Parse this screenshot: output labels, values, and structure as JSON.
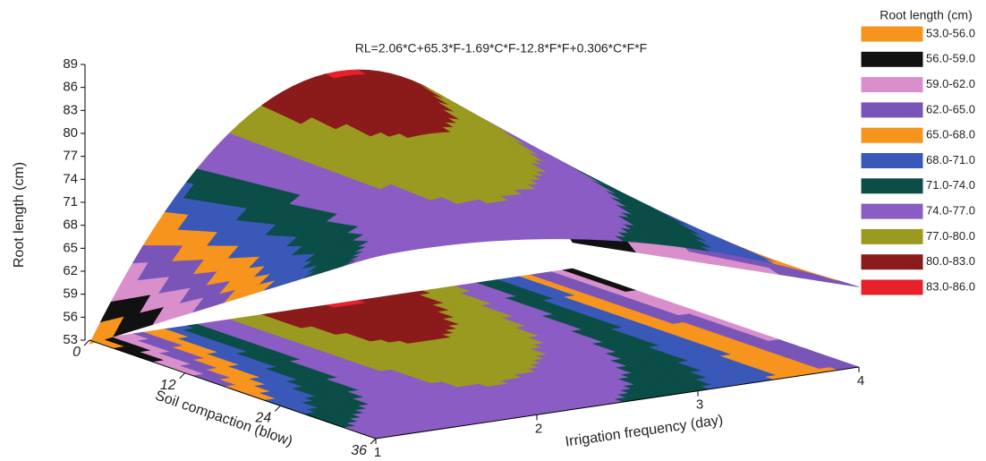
{
  "chart_data": {
    "type": "surface",
    "title": "RL=2.06*C+65.3*F-1.69*C*F-12.8*F*F+0.306*C*F*F",
    "zlabel": "Root length (cm)",
    "zlim": [
      53,
      89
    ],
    "zticks": [
      53,
      56,
      59,
      62,
      65,
      68,
      71,
      74,
      77,
      80,
      83,
      86,
      89
    ],
    "xlabel": "Soil compaction (blow)",
    "xlim": [
      0,
      36
    ],
    "xticks": [
      0,
      12,
      24,
      36
    ],
    "ylabel": "Irrigation frequency (day)",
    "ylim": [
      1,
      4
    ],
    "yticks": [
      1,
      2,
      3,
      4
    ],
    "legend": {
      "title": "Root length (cm)",
      "items": [
        {
          "label": "53.0-56.0",
          "range": [
            53,
            56
          ],
          "color": "#f7941d"
        },
        {
          "label": "56.0-59.0",
          "range": [
            56,
            59
          ],
          "color": "#111111"
        },
        {
          "label": "59.0-62.0",
          "range": [
            59,
            62
          ],
          "color": "#d98fcb"
        },
        {
          "label": "62.0-65.0",
          "range": [
            62,
            65
          ],
          "color": "#7a55b8"
        },
        {
          "label": "65.0-68.0",
          "range": [
            65,
            68
          ],
          "color": "#f7941d"
        },
        {
          "label": "68.0-71.0",
          "range": [
            68,
            71
          ],
          "color": "#3a58b8"
        },
        {
          "label": "71.0-74.0",
          "range": [
            71,
            74
          ],
          "color": "#0b4d47"
        },
        {
          "label": "74.0-77.0",
          "range": [
            74,
            77
          ],
          "color": "#8a5cc4"
        },
        {
          "label": "77.0-80.0",
          "range": [
            77,
            80
          ],
          "color": "#9a9a20"
        },
        {
          "label": "80.0-83.0",
          "range": [
            80,
            83
          ],
          "color": "#8b1a1a"
        },
        {
          "label": "83.0-86.0",
          "range": [
            83,
            86
          ],
          "color": "#e8202a"
        }
      ]
    }
  }
}
